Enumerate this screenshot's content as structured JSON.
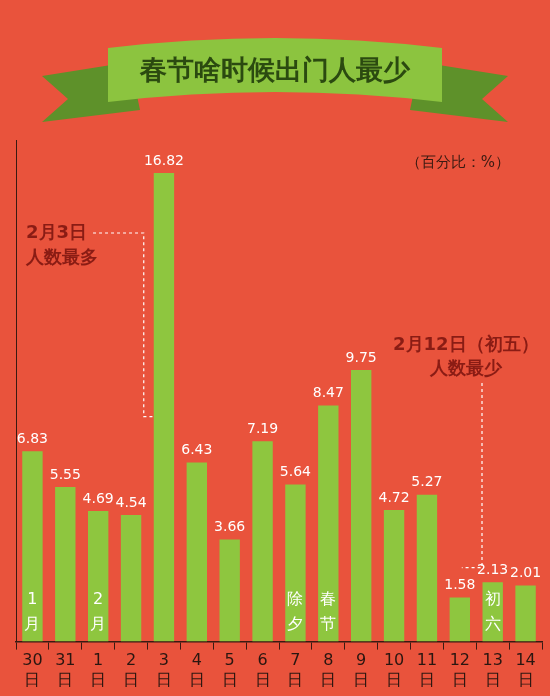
{
  "chart_data": {
    "type": "bar",
    "title": "春节啥时候出门人最少",
    "subtitle": "（百分比：%）",
    "categories": [
      "30日",
      "31日",
      "1日",
      "2日",
      "3日",
      "4日",
      "5日",
      "6日",
      "7日",
      "8日",
      "9日",
      "10日",
      "11日",
      "12日",
      "13日",
      "14日"
    ],
    "values": [
      6.83,
      5.55,
      4.69,
      4.54,
      16.82,
      6.43,
      3.66,
      7.19,
      5.64,
      8.47,
      9.75,
      4.72,
      5.27,
      1.58,
      2.13,
      2.01
    ],
    "color": "#8ec63f",
    "ylim": [
      0,
      18
    ],
    "grid": false,
    "data_labels": true,
    "tick_labels": "x",
    "annotations": [
      {
        "category": "3日",
        "text": [
          "2月3日",
          "人数最多"
        ]
      },
      {
        "category": "12日",
        "text": [
          "2月12日（初五）",
          "人数最少"
        ]
      }
    ],
    "bar_notes": [
      {
        "category": "30日",
        "text": "1月"
      },
      {
        "category": "1日",
        "text": "2月"
      },
      {
        "category": "7日",
        "text": "除夕"
      },
      {
        "category": "8日",
        "text": "春节"
      },
      {
        "category": "13日",
        "text": "初六"
      }
    ]
  }
}
